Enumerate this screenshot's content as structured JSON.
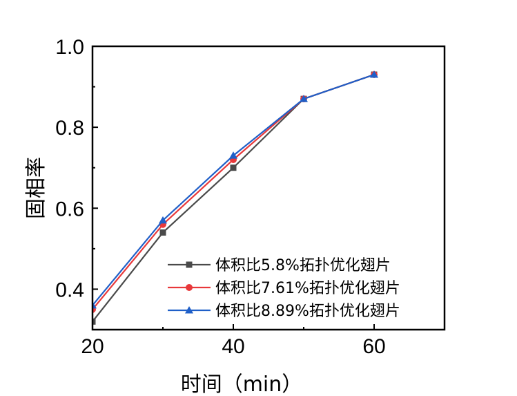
{
  "chart_data": {
    "type": "line",
    "xlabel": "时间（min）",
    "ylabel": "固相率",
    "xlim": [
      20,
      70
    ],
    "ylim": [
      0.3,
      1.0
    ],
    "xticks": [
      20,
      40,
      60
    ],
    "yticks": [
      0.4,
      0.6,
      0.8,
      1.0
    ],
    "ytick_labels": [
      "0.4",
      "0.6",
      "0.8",
      "1.0"
    ],
    "grid": false,
    "legend_position": "bottom-right",
    "series": [
      {
        "name": "体积比5.8%拓扑优化翅片",
        "color": "#4a4a4a",
        "marker": "square",
        "x": [
          20,
          30,
          40,
          50,
          60
        ],
        "y": [
          0.32,
          0.54,
          0.7,
          0.87,
          0.93
        ]
      },
      {
        "name": "体积比7.61%拓扑优化翅片",
        "color": "#e8383a",
        "marker": "circle",
        "x": [
          20,
          30,
          40,
          50,
          60
        ],
        "y": [
          0.35,
          0.56,
          0.72,
          0.87,
          0.93
        ]
      },
      {
        "name": "体积比8.89%拓扑优化翅片",
        "color": "#1f5fc8",
        "marker": "triangle",
        "x": [
          20,
          30,
          40,
          50,
          60
        ],
        "y": [
          0.36,
          0.57,
          0.73,
          0.87,
          0.93
        ]
      }
    ]
  }
}
